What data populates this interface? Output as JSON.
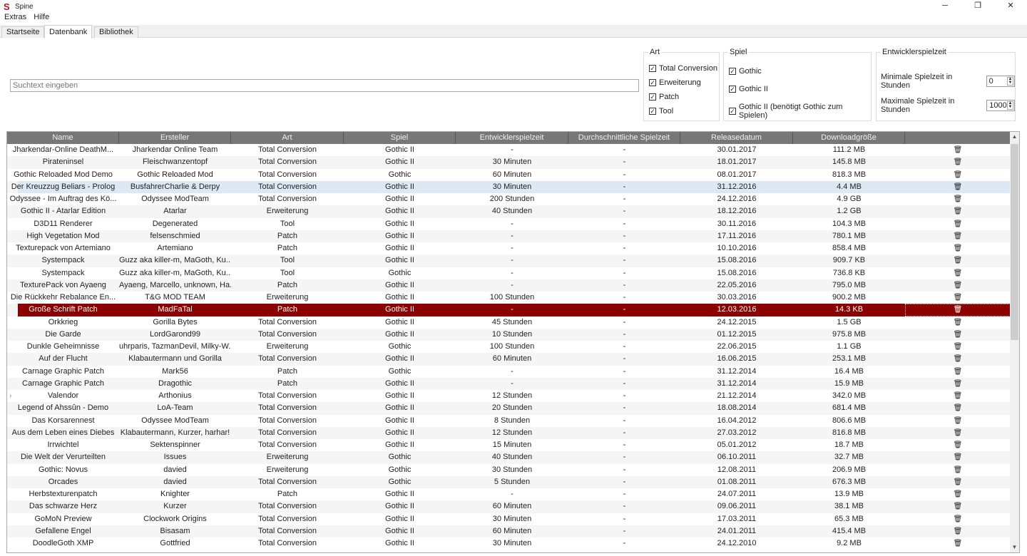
{
  "app": {
    "title": "Spine",
    "minimize": "─",
    "maximize": "❐",
    "close": "✕"
  },
  "menu": [
    "Extras",
    "Hilfe"
  ],
  "tabs": [
    {
      "label": "Startseite"
    },
    {
      "label": "Datenbank",
      "active": true
    },
    {
      "label": "Bibliothek"
    }
  ],
  "search": {
    "placeholder": "Suchtext eingeben"
  },
  "filters": {
    "art": {
      "title": "Art",
      "items": [
        "Total Conversion",
        "Erweiterung",
        "Patch",
        "Tool"
      ]
    },
    "spiel": {
      "title": "Spiel",
      "items": [
        "Gothic",
        "Gothic II",
        "Gothic II (benötigt Gothic zum Spielen)"
      ]
    },
    "dev": {
      "title": "Entwicklerspielzeit",
      "min_label": "Minimale Spielzeit in Stunden",
      "min_value": "0",
      "max_label": "Maximale Spielzeit in Stunden",
      "max_value": "1000"
    }
  },
  "columns": [
    "Name",
    "Ersteller",
    "Art",
    "Spiel",
    "Entwicklerspielzeit",
    "Durchschnittliche Spielzeit",
    "Releasedatum",
    "Downloadgröße",
    ""
  ],
  "colors": {
    "header": "#777777",
    "selected": "#8b0000",
    "hover": "#dce8f4"
  },
  "hover_row": 3,
  "selected_row": 13,
  "expandable_row": 20,
  "rows": [
    [
      "Jharkendar-Online DeathM...",
      "Jharkendar Online Team",
      "Total Conversion",
      "Gothic II",
      "-",
      "-",
      "30.01.2017",
      "111.2 MB"
    ],
    [
      "Pirateninsel",
      "Fleischwanzentopf",
      "Total Conversion",
      "Gothic II",
      "30 Minuten",
      "-",
      "18.01.2017",
      "145.8 MB"
    ],
    [
      "Gothic Reloaded Mod Demo",
      "Gothic Reloaded Mod",
      "Total Conversion",
      "Gothic",
      "60 Minuten",
      "-",
      "08.01.2017",
      "818.3 MB"
    ],
    [
      "Der Kreuzzug Beliars - Prolog",
      "BusfahrerCharlie & Derpy",
      "Total Conversion",
      "Gothic II",
      "30 Minuten",
      "-",
      "31.12.2016",
      "4.4 MB"
    ],
    [
      "Odyssee - Im Auftrag des Kö...",
      "Odyssee ModTeam",
      "Total Conversion",
      "Gothic II",
      "200 Stunden",
      "-",
      "24.12.2016",
      "4.9 GB"
    ],
    [
      "Gothic II - Atarlar Edition",
      "Atarlar",
      "Erweiterung",
      "Gothic II",
      "40 Stunden",
      "-",
      "18.12.2016",
      "1.2 GB"
    ],
    [
      "D3D11 Renderer",
      "Degenerated",
      "Tool",
      "Gothic II",
      "-",
      "-",
      "30.11.2016",
      "104.3 MB"
    ],
    [
      "High Vegetation Mod",
      "felsenschmied",
      "Patch",
      "Gothic II",
      "-",
      "-",
      "17.11.2016",
      "780.1 MB"
    ],
    [
      "Texturepack von Artemiano",
      "Artemiano",
      "Patch",
      "Gothic II",
      "-",
      "-",
      "10.10.2016",
      "858.4 MB"
    ],
    [
      "Systempack",
      "Guzz aka killer-m, MaGoth, Ku...",
      "Tool",
      "Gothic II",
      "-",
      "-",
      "15.08.2016",
      "909.7 KB"
    ],
    [
      "Systempack",
      "Guzz aka killer-m, MaGoth, Ku...",
      "Tool",
      "Gothic",
      "-",
      "-",
      "15.08.2016",
      "736.8 KB"
    ],
    [
      "TexturePack von Ayaeng",
      "Ayaeng, Marcello, unknown, Ha...",
      "Patch",
      "Gothic II",
      "-",
      "-",
      "22.05.2016",
      "795.0 MB"
    ],
    [
      "Die Rückkehr Rebalance En...",
      "T&G MOD TEAM",
      "Erweiterung",
      "Gothic II",
      "100 Stunden",
      "-",
      "30.03.2016",
      "900.2 MB"
    ],
    [
      "Große Schrift Patch",
      "MadFaTal",
      "Patch",
      "Gothic II",
      "-",
      "-",
      "12.03.2016",
      "14.3 KB"
    ],
    [
      "Orkkrieg",
      "Gorilla Bytes",
      "Total Conversion",
      "Gothic II",
      "45 Stunden",
      "-",
      "24.12.2015",
      "1.5 GB"
    ],
    [
      "Die Garde",
      "LordGarond99",
      "Total Conversion",
      "Gothic II",
      "10 Stunden",
      "-",
      "01.12.2015",
      "975.8 MB"
    ],
    [
      "Dunkle Geheimnisse",
      "uhrparis, TazmanDevil, Milky-W...",
      "Erweiterung",
      "Gothic",
      "100 Stunden",
      "-",
      "22.06.2015",
      "1.1 GB"
    ],
    [
      "Auf der Flucht",
      "Klabautermann und Gorilla",
      "Total Conversion",
      "Gothic II",
      "60 Minuten",
      "-",
      "16.06.2015",
      "253.1 MB"
    ],
    [
      "Carnage Graphic Patch",
      "Mark56",
      "Patch",
      "Gothic",
      "-",
      "-",
      "31.12.2014",
      "16.4 MB"
    ],
    [
      "Carnage Graphic Patch",
      "Dragothic",
      "Patch",
      "Gothic II",
      "-",
      "-",
      "31.12.2014",
      "15.9 MB"
    ],
    [
      "Valendor",
      "Arthonius",
      "Total Conversion",
      "Gothic II",
      "12 Stunden",
      "-",
      "21.12.2014",
      "342.0 MB"
    ],
    [
      "Legend of Ahssûn - Demo",
      "LoA-Team",
      "Total Conversion",
      "Gothic II",
      "20 Stunden",
      "-",
      "18.08.2014",
      "681.4 MB"
    ],
    [
      "Das Korsarennest",
      "Odyssee ModTeam",
      "Total Conversion",
      "Gothic II",
      "8 Stunden",
      "-",
      "16.04.2012",
      "806.6 MB"
    ],
    [
      "Aus dem Leben eines Diebes",
      "Klabautermann, Kurzer, harhar!",
      "Total Conversion",
      "Gothic II",
      "12 Stunden",
      "-",
      "27.03.2012",
      "816.8 MB"
    ],
    [
      "Irrwichtel",
      "Sektenspinner",
      "Total Conversion",
      "Gothic II",
      "15 Minuten",
      "-",
      "05.01.2012",
      "18.7 MB"
    ],
    [
      "Die Welt der Verurteilten",
      "Issues",
      "Erweiterung",
      "Gothic",
      "40 Stunden",
      "-",
      "06.10.2011",
      "32.7 MB"
    ],
    [
      "Gothic: Novus",
      "davied",
      "Erweiterung",
      "Gothic",
      "30 Stunden",
      "-",
      "12.08.2011",
      "206.9 MB"
    ],
    [
      "Orcades",
      "davied",
      "Total Conversion",
      "Gothic",
      "5 Stunden",
      "-",
      "01.08.2011",
      "676.3 MB"
    ],
    [
      "Herbstexturenpatch",
      "Knighter",
      "Patch",
      "Gothic II",
      "-",
      "-",
      "24.07.2011",
      "13.9 MB"
    ],
    [
      "Das schwarze Herz",
      "Kurzer",
      "Total Conversion",
      "Gothic II",
      "60 Minuten",
      "-",
      "09.06.2011",
      "38.1 MB"
    ],
    [
      "GoMoN Preview",
      "Clockwork Origins",
      "Total Conversion",
      "Gothic II",
      "30 Minuten",
      "-",
      "17.03.2011",
      "65.3 MB"
    ],
    [
      "Gefallene Engel",
      "Bisasam",
      "Total Conversion",
      "Gothic II",
      "60 Minuten",
      "-",
      "24.01.2011",
      "415.4 MB"
    ],
    [
      "DoodleGoth XMP",
      "Gottfried",
      "Total Conversion",
      "Gothic II",
      "30 Minuten",
      "-",
      "24.12.2010",
      "9.2 MB"
    ]
  ]
}
